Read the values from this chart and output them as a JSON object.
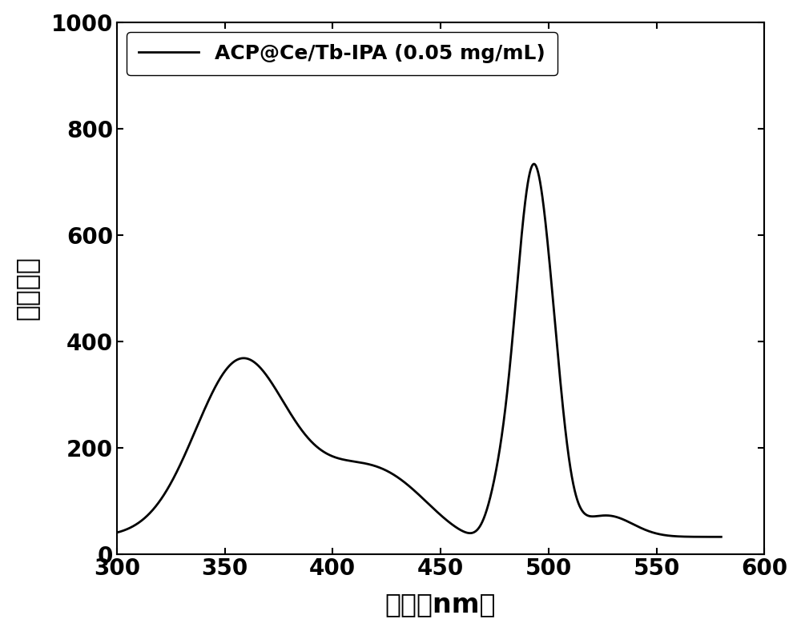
{
  "legend_label": "ACP@Ce/Tb-IPA (0.05 mg/mL)",
  "xlabel": "波长（nm）",
  "ylabel": "荧光强度",
  "xlim": [
    300,
    600
  ],
  "ylim": [
    0,
    1000
  ],
  "xticks": [
    300,
    350,
    400,
    450,
    500,
    550,
    600
  ],
  "yticks": [
    0,
    200,
    400,
    600,
    800,
    1000
  ],
  "line_color": "#000000",
  "line_width": 2.0,
  "background_color": "#ffffff",
  "label_fontsize": 24,
  "tick_fontsize": 20,
  "legend_fontsize": 18
}
